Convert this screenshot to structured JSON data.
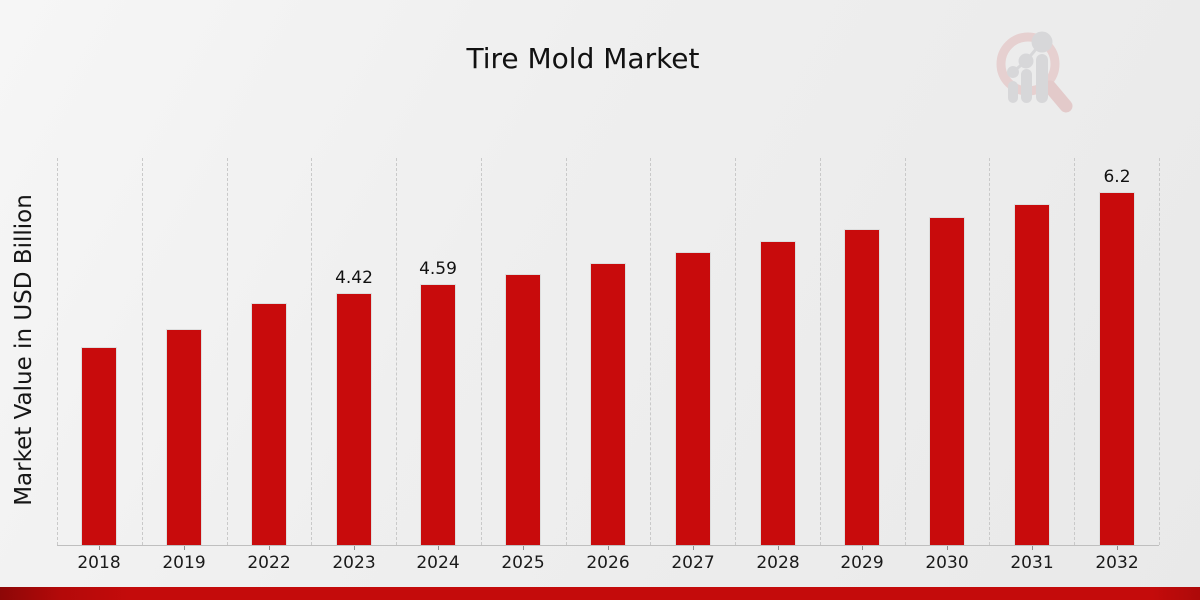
{
  "title": "Tire Mold Market",
  "y_axis_label": "Market Value in USD Billion",
  "logo": {
    "name": "magnifier-bar-chart-logo"
  },
  "colors": {
    "bar": "#c80b0c",
    "bar_edge": "#dedede",
    "grid": "#c9c9c9",
    "axis": "#bfbfbf",
    "text": "#1a1a1a",
    "footer_strip": "#c40b0b",
    "footer_strip_dark": "#8d0707",
    "background_light": "#f6f6f6",
    "background_dark": "#e9e9e9",
    "logo_ring": "#e2baba",
    "logo_gray": "#c7c7cb"
  },
  "chart_data": {
    "type": "bar",
    "title": "Tire Mold Market",
    "xlabel": "",
    "ylabel": "Market Value in USD Billion",
    "categories": [
      "2018",
      "2019",
      "2022",
      "2023",
      "2024",
      "2025",
      "2026",
      "2027",
      "2028",
      "2029",
      "2030",
      "2031",
      "2032"
    ],
    "values": [
      3.48,
      3.8,
      4.25,
      4.42,
      4.59,
      4.77,
      4.96,
      5.15,
      5.35,
      5.56,
      5.77,
      6.0,
      6.2
    ],
    "data_labels": [
      "",
      "",
      "",
      "4.42",
      "4.59",
      "",
      "",
      "",
      "",
      "",
      "",
      "",
      "6.2"
    ],
    "ylim": [
      0,
      6.8
    ],
    "grid": "vertical dashed lines at category boundaries",
    "legend": "none",
    "bar_color": "#c80b0c"
  }
}
